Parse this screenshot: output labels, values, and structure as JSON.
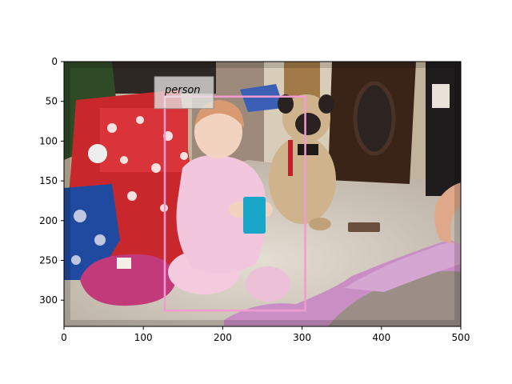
{
  "figure": {
    "image": {
      "description": "Toddler in pink outfit sitting on carpet holding a blue cup; pug dog with red leash behind; wrapped presents on the left; pink clothing and an adult arm on the right",
      "extent": {
        "x": [
          0,
          500
        ],
        "y": [
          0,
          333
        ]
      },
      "colors": {
        "floor": "#d9d1c6",
        "wall": "#c9b9a0",
        "presents_red": "#c8282c",
        "outfit_pink": "#f2c6dc",
        "pug_fawn": "#cfb38c",
        "cup_blue": "#1aa6c8",
        "blanket_purple": "#c98fc4",
        "hat_magenta": "#c23a7a",
        "cabinet_dark": "#3a2418"
      }
    },
    "x_axis": {
      "range": [
        0,
        500
      ],
      "ticks": [
        "0",
        "100",
        "200",
        "300",
        "400",
        "500"
      ],
      "tick_values": [
        0,
        100,
        200,
        300,
        400,
        500
      ]
    },
    "y_axis": {
      "range": [
        0,
        333
      ],
      "inverted": true,
      "ticks": [
        "0",
        "50",
        "100",
        "150",
        "200",
        "250",
        "300"
      ],
      "tick_values": [
        0,
        50,
        100,
        150,
        200,
        250,
        300
      ]
    },
    "detections": [
      {
        "label": "person",
        "x0": 127,
        "y0": 44,
        "x1": 304,
        "y1": 313,
        "color": "#f29bd0"
      }
    ]
  }
}
